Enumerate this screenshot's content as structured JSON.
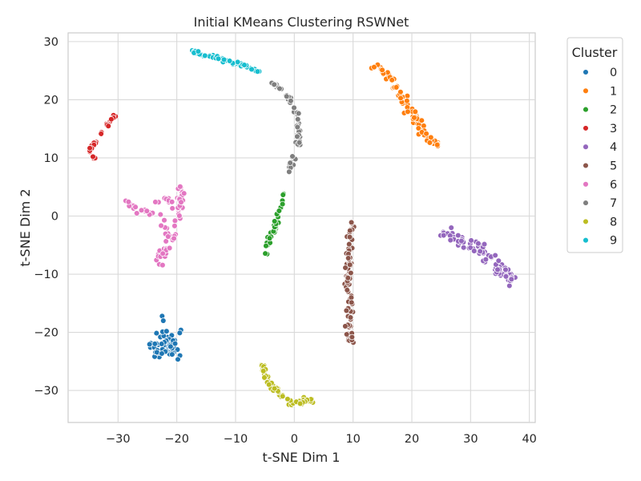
{
  "chart_data": {
    "type": "scatter",
    "title": "Initial KMeans Clustering RSWNet",
    "xlabel": "t-SNE Dim 1",
    "ylabel": "t-SNE Dim 2",
    "xlim": [
      -38.5,
      41
    ],
    "ylim": [
      -35.5,
      31.5
    ],
    "xticks": [
      -30,
      -20,
      -10,
      0,
      10,
      20,
      30,
      40
    ],
    "yticks": [
      -30,
      -20,
      -10,
      0,
      10,
      20,
      30
    ],
    "grid": true,
    "legend": {
      "title": "Cluster",
      "placement": "outside-right"
    },
    "series": [
      {
        "name": "0",
        "color": "#1f77b4",
        "shape": "blob",
        "center": [
          -22,
          -22.3
        ],
        "spread": [
          2.5,
          2.0
        ],
        "n": 70,
        "extras": [
          [
            -22.5,
            -17.2
          ],
          [
            -22.3,
            -18.0
          ],
          [
            -19.3,
            -19.6
          ],
          [
            -19.5,
            -20.1
          ]
        ]
      },
      {
        "name": "1",
        "color": "#ff7f0e",
        "shape": "path",
        "width": 0.9,
        "n": 90,
        "path": [
          [
            13.5,
            26.0
          ],
          [
            15.5,
            24.5
          ],
          [
            17,
            22.5
          ],
          [
            19,
            19.5
          ],
          [
            20.5,
            17
          ],
          [
            22,
            14.5
          ],
          [
            23,
            13
          ],
          [
            25,
            12
          ]
        ]
      },
      {
        "name": "2",
        "color": "#2ca02c",
        "shape": "path",
        "width": 0.5,
        "n": 35,
        "path": [
          [
            -5.0,
            -6.5
          ],
          [
            -4.2,
            -3.5
          ],
          [
            -3.2,
            -1.5
          ],
          [
            -2.3,
            1.5
          ],
          [
            -1.7,
            4.0
          ]
        ]
      },
      {
        "name": "3",
        "color": "#d62728",
        "shape": "path",
        "width": 0.4,
        "n": 30,
        "path": [
          [
            -34,
            9.8
          ],
          [
            -34.8,
            11.5
          ],
          [
            -33.2,
            13.5
          ],
          [
            -32,
            15.5
          ],
          [
            -30.2,
            17.6
          ]
        ]
      },
      {
        "name": "4",
        "color": "#9467bd",
        "shape": "path",
        "width": 1.6,
        "n": 85,
        "path": [
          [
            25,
            -2.5
          ],
          [
            28,
            -3.5
          ],
          [
            30,
            -5
          ],
          [
            32.5,
            -7
          ],
          [
            35,
            -9.5
          ],
          [
            37.3,
            -11
          ]
        ]
      },
      {
        "name": "5",
        "color": "#8c564b",
        "shape": "path",
        "width": 0.7,
        "n": 80,
        "path": [
          [
            10,
            0
          ],
          [
            9.3,
            -3.5
          ],
          [
            9.5,
            -7.5
          ],
          [
            9,
            -11
          ],
          [
            9.5,
            -15
          ],
          [
            9.3,
            -18.5
          ],
          [
            9.5,
            -22
          ]
        ]
      },
      {
        "name": "6",
        "color": "#e377c2",
        "shape": "path",
        "width": 0.9,
        "n": 85,
        "path": [
          [
            -30,
            3
          ],
          [
            -26,
            1
          ],
          [
            -23.5,
            0
          ],
          [
            -21,
            -3
          ],
          [
            -22.5,
            -5.5
          ],
          [
            -23,
            -8.5
          ],
          [
            -21,
            -5
          ],
          [
            -19.5,
            0
          ],
          [
            -19,
            3
          ],
          [
            -19.2,
            5
          ],
          [
            -20,
            2
          ],
          [
            -22,
            2.5
          ],
          [
            -24,
            2.5
          ]
        ]
      },
      {
        "name": "7",
        "color": "#7f7f7f",
        "shape": "path",
        "width": 0.4,
        "n": 60,
        "path": [
          [
            -3.8,
            23
          ],
          [
            -2.0,
            21.5
          ],
          [
            -0.5,
            20
          ],
          [
            0.6,
            17.5
          ],
          [
            0.8,
            14.5
          ],
          [
            0.5,
            11.5
          ],
          [
            -0.5,
            9
          ],
          [
            -1.0,
            7.5
          ]
        ]
      },
      {
        "name": "8",
        "color": "#bcbd22",
        "shape": "path",
        "width": 0.6,
        "n": 55,
        "path": [
          [
            -5.5,
            -25.5
          ],
          [
            -4.8,
            -27.5
          ],
          [
            -3.5,
            -29.5
          ],
          [
            -2.0,
            -31.0
          ],
          [
            -0.5,
            -32.0
          ],
          [
            1.2,
            -32.0
          ],
          [
            3.0,
            -31.5
          ]
        ]
      },
      {
        "name": "9",
        "color": "#17becf",
        "shape": "path",
        "width": 0.4,
        "n": 60,
        "path": [
          [
            -17.5,
            28.3
          ],
          [
            -15,
            27.6
          ],
          [
            -12.5,
            27.0
          ],
          [
            -10,
            26.3
          ],
          [
            -8,
            25.7
          ],
          [
            -6,
            24.8
          ]
        ]
      }
    ]
  }
}
